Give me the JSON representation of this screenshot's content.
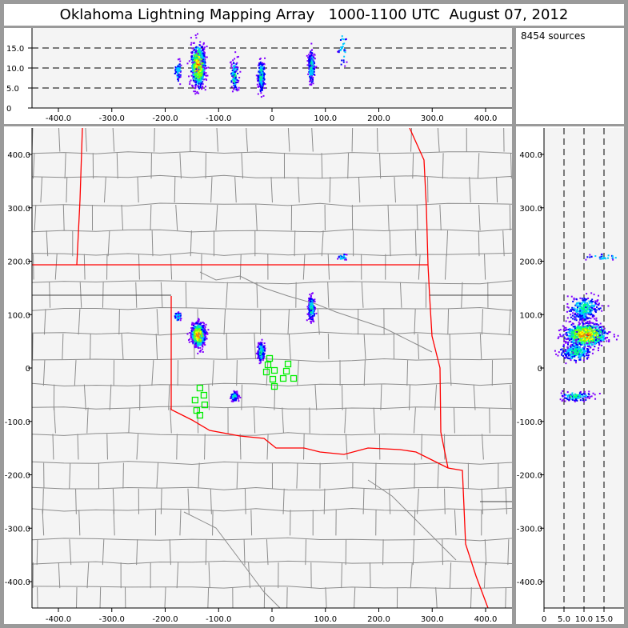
{
  "title": "Oklahoma Lightning Mapping Array   1000-1100 UTC  August 07, 2012",
  "source_count_label": "8454 sources",
  "colors": {
    "frame": "#9a9a9a",
    "plot_bg": "#f4f4f4",
    "county": "#8c8c8c",
    "state": "#ff0000",
    "station": "#00ee00",
    "density": [
      "#8000ff",
      "#0000ff",
      "#00c8ff",
      "#00ff80",
      "#80ff00",
      "#ffff00",
      "#ff8000",
      "#ff0000"
    ]
  },
  "chart_data": [
    {
      "type": "scatter",
      "view": "east-west vs altitude",
      "xlim": [
        -450,
        450
      ],
      "ylim": [
        0,
        20
      ],
      "xticks": [
        "-400.0",
        "-300.0",
        "-200.0",
        "-100.0",
        "0",
        "100.0",
        "200.0",
        "300.0",
        "400.0"
      ],
      "xtick_values": [
        -400,
        -300,
        -200,
        -100,
        0,
        100,
        200,
        300,
        400
      ],
      "yticks": [
        "0",
        "5.0",
        "10.0",
        "15.0"
      ],
      "ytick_values": [
        0,
        5,
        10,
        15
      ],
      "dashed_reference_altitudes": [
        5,
        10,
        15
      ]
    },
    {
      "type": "scatter",
      "view": "plan map",
      "xlim": [
        -450,
        450
      ],
      "ylim": [
        -450,
        450
      ],
      "xticks": [
        "-400.0",
        "-300.0",
        "-200.0",
        "-100.0",
        "0",
        "100.0",
        "200.0",
        "300.0",
        "400.0"
      ],
      "xtick_values": [
        -400,
        -300,
        -200,
        -100,
        0,
        100,
        200,
        300,
        400
      ],
      "yticks": [
        "400.0",
        "300.0",
        "200.0",
        "100.0",
        "0",
        "-100.0",
        "-200.0",
        "-300.0",
        "-400.0"
      ],
      "ytick_values": [
        400,
        300,
        200,
        100,
        0,
        -100,
        -200,
        -300,
        -400
      ],
      "stations": [
        [
          -4.5,
          18
        ],
        [
          -7.5,
          6
        ],
        [
          -10.5,
          -7.5
        ],
        [
          4.5,
          -4.5
        ],
        [
          1.5,
          -21
        ],
        [
          4.5,
          -34.5
        ],
        [
          30,
          7.5
        ],
        [
          27,
          -6
        ],
        [
          21,
          -19.5
        ],
        [
          40.5,
          -19.5
        ],
        [
          -135,
          -37.5
        ],
        [
          -127.5,
          -51
        ],
        [
          -144,
          -60
        ],
        [
          -126,
          -69
        ],
        [
          -141,
          -79.5
        ],
        [
          -135,
          -88.5
        ]
      ]
    },
    {
      "type": "scatter",
      "view": "altitude vs north-south",
      "xlim": [
        0,
        20
      ],
      "ylim": [
        -450,
        450
      ],
      "xticks": [
        "0",
        "5.0",
        "10.0",
        "15.0"
      ],
      "xtick_values": [
        0,
        5,
        10,
        15
      ],
      "yticks": [
        "400.0",
        "300.0",
        "200.0",
        "100.0",
        "0",
        "-100.0",
        "-200.0",
        "-300.0",
        "-400.0"
      ],
      "ytick_values": [
        400,
        300,
        200,
        100,
        0,
        -100,
        -200,
        -300,
        -400
      ],
      "dashed_reference_altitudes": [
        5,
        10,
        15
      ]
    }
  ],
  "source_clusters": [
    {
      "x": -138,
      "y": 62,
      "z": 10.5,
      "sx": 6,
      "sy": 10,
      "sz": 2.4,
      "n": 900
    },
    {
      "x": -176,
      "y": 96,
      "z": 9.3,
      "sx": 3,
      "sy": 4,
      "sz": 1.2,
      "n": 60
    },
    {
      "x": -70,
      "y": -53,
      "z": 8,
      "sx": 3,
      "sy": 4,
      "sz": 1.8,
      "n": 120
    },
    {
      "x": -20,
      "y": 30,
      "z": 8,
      "sx": 3,
      "sy": 8,
      "sz": 1.8,
      "n": 260
    },
    {
      "x": 74,
      "y": 112,
      "z": 10.3,
      "sx": 3,
      "sy": 10,
      "sz": 1.8,
      "n": 260
    },
    {
      "x": 132,
      "y": 207,
      "z": 15,
      "sx": 4,
      "sy": 3,
      "sz": 2,
      "n": 30
    }
  ]
}
